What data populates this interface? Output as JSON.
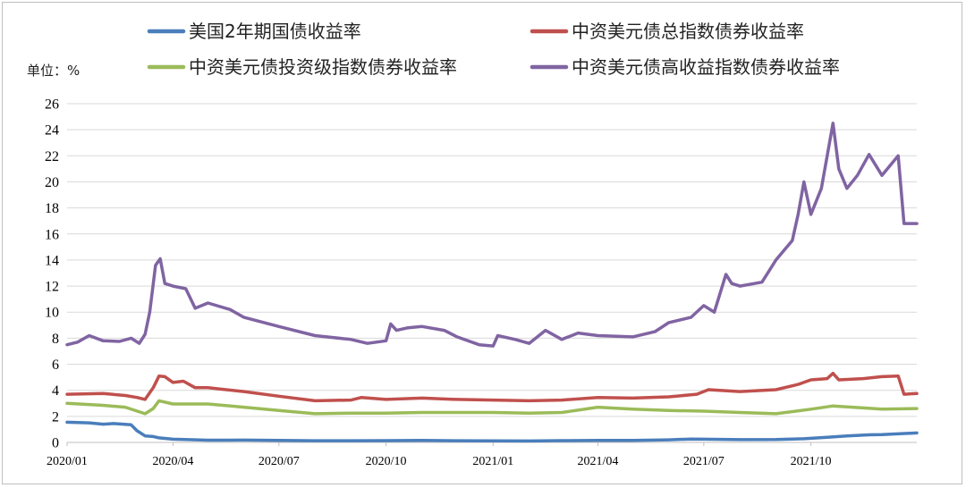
{
  "chart_data": {
    "type": "line",
    "unit_label": "单位：%",
    "ylim": [
      0,
      26
    ],
    "y_ticks": [
      "0",
      "2",
      "4",
      "6",
      "8",
      "10",
      "12",
      "14",
      "16",
      "18",
      "20",
      "22",
      "24",
      "26"
    ],
    "x_ticks": [
      "2020/01",
      "2020/04",
      "2020/07",
      "2020/10",
      "2021/01",
      "2021/04",
      "2021/07",
      "2021/10"
    ],
    "grid": "horizontal",
    "legend_position": "top",
    "series": [
      {
        "name": "美国2年期国债收益率",
        "color": "#4a7ebb",
        "points": [
          [
            "2020/01/01",
            1.55
          ],
          [
            "2020/01/20",
            1.5
          ],
          [
            "2020/02/01",
            1.4
          ],
          [
            "2020/02/10",
            1.45
          ],
          [
            "2020/02/25",
            1.35
          ],
          [
            "2020/03/01",
            0.9
          ],
          [
            "2020/03/08",
            0.5
          ],
          [
            "2020/03/15",
            0.45
          ],
          [
            "2020/03/20",
            0.35
          ],
          [
            "2020/04/01",
            0.25
          ],
          [
            "2020/05/01",
            0.17
          ],
          [
            "2020/06/01",
            0.18
          ],
          [
            "2020/07/01",
            0.15
          ],
          [
            "2020/08/01",
            0.13
          ],
          [
            "2020/09/01",
            0.13
          ],
          [
            "2020/10/01",
            0.14
          ],
          [
            "2020/11/01",
            0.16
          ],
          [
            "2020/12/01",
            0.13
          ],
          [
            "2021/01/01",
            0.12
          ],
          [
            "2021/02/01",
            0.11
          ],
          [
            "2021/03/01",
            0.14
          ],
          [
            "2021/04/01",
            0.16
          ],
          [
            "2021/05/01",
            0.15
          ],
          [
            "2021/06/01",
            0.2
          ],
          [
            "2021/06/20",
            0.26
          ],
          [
            "2021/07/01",
            0.25
          ],
          [
            "2021/08/01",
            0.21
          ],
          [
            "2021/09/01",
            0.22
          ],
          [
            "2021/09/25",
            0.28
          ],
          [
            "2021/10/15",
            0.4
          ],
          [
            "2021/11/01",
            0.5
          ],
          [
            "2021/11/20",
            0.58
          ],
          [
            "2021/12/01",
            0.6
          ],
          [
            "2021/12/31",
            0.73
          ]
        ]
      },
      {
        "name": "中资美元债总指数债券收益率",
        "color": "#c0504d",
        "points": [
          [
            "2020/01/01",
            3.7
          ],
          [
            "2020/02/01",
            3.75
          ],
          [
            "2020/02/20",
            3.6
          ],
          [
            "2020/03/01",
            3.45
          ],
          [
            "2020/03/08",
            3.3
          ],
          [
            "2020/03/15",
            4.2
          ],
          [
            "2020/03/20",
            5.1
          ],
          [
            "2020/03/25",
            5.05
          ],
          [
            "2020/04/01",
            4.6
          ],
          [
            "2020/04/10",
            4.7
          ],
          [
            "2020/04/20",
            4.2
          ],
          [
            "2020/05/01",
            4.2
          ],
          [
            "2020/06/01",
            3.9
          ],
          [
            "2020/07/01",
            3.55
          ],
          [
            "2020/08/01",
            3.2
          ],
          [
            "2020/09/01",
            3.25
          ],
          [
            "2020/09/10",
            3.45
          ],
          [
            "2020/10/01",
            3.3
          ],
          [
            "2020/11/01",
            3.4
          ],
          [
            "2020/12/01",
            3.3
          ],
          [
            "2021/01/01",
            3.25
          ],
          [
            "2021/02/01",
            3.2
          ],
          [
            "2021/03/01",
            3.25
          ],
          [
            "2021/04/01",
            3.45
          ],
          [
            "2021/05/01",
            3.4
          ],
          [
            "2021/06/01",
            3.5
          ],
          [
            "2021/06/25",
            3.7
          ],
          [
            "2021/07/05",
            4.05
          ],
          [
            "2021/08/01",
            3.9
          ],
          [
            "2021/09/01",
            4.05
          ],
          [
            "2021/09/20",
            4.45
          ],
          [
            "2021/10/01",
            4.8
          ],
          [
            "2021/10/15",
            4.9
          ],
          [
            "2021/10/20",
            5.3
          ],
          [
            "2021/10/25",
            4.8
          ],
          [
            "2021/11/15",
            4.9
          ],
          [
            "2021/12/01",
            5.05
          ],
          [
            "2021/12/15",
            5.1
          ],
          [
            "2021/12/20",
            3.7
          ],
          [
            "2021/12/31",
            3.75
          ]
        ]
      },
      {
        "name": "中资美元债投资级指数债券收益率",
        "color": "#9bbb59",
        "points": [
          [
            "2020/01/01",
            3.0
          ],
          [
            "2020/02/01",
            2.85
          ],
          [
            "2020/02/20",
            2.7
          ],
          [
            "2020/03/08",
            2.2
          ],
          [
            "2020/03/15",
            2.6
          ],
          [
            "2020/03/20",
            3.2
          ],
          [
            "2020/04/01",
            2.95
          ],
          [
            "2020/05/01",
            2.95
          ],
          [
            "2020/06/01",
            2.7
          ],
          [
            "2020/07/01",
            2.45
          ],
          [
            "2020/08/01",
            2.2
          ],
          [
            "2020/09/01",
            2.25
          ],
          [
            "2020/10/01",
            2.25
          ],
          [
            "2020/11/01",
            2.3
          ],
          [
            "2020/12/01",
            2.3
          ],
          [
            "2021/01/01",
            2.3
          ],
          [
            "2021/02/01",
            2.25
          ],
          [
            "2021/03/01",
            2.3
          ],
          [
            "2021/04/01",
            2.7
          ],
          [
            "2021/05/01",
            2.55
          ],
          [
            "2021/06/01",
            2.45
          ],
          [
            "2021/07/01",
            2.4
          ],
          [
            "2021/08/01",
            2.3
          ],
          [
            "2021/09/01",
            2.2
          ],
          [
            "2021/10/01",
            2.55
          ],
          [
            "2021/10/20",
            2.8
          ],
          [
            "2021/11/15",
            2.65
          ],
          [
            "2021/12/01",
            2.55
          ],
          [
            "2021/12/31",
            2.6
          ]
        ]
      },
      {
        "name": "中资美元债高收益指数债券收益率",
        "color": "#8064a2",
        "points": [
          [
            "2020/01/01",
            7.5
          ],
          [
            "2020/01/10",
            7.7
          ],
          [
            "2020/01/20",
            8.2
          ],
          [
            "2020/02/01",
            7.8
          ],
          [
            "2020/02/15",
            7.75
          ],
          [
            "2020/02/25",
            8.0
          ],
          [
            "2020/03/03",
            7.6
          ],
          [
            "2020/03/08",
            8.3
          ],
          [
            "2020/03/12",
            10.0
          ],
          [
            "2020/03/17",
            13.6
          ],
          [
            "2020/03/21",
            14.1
          ],
          [
            "2020/03/25",
            12.2
          ],
          [
            "2020/04/01",
            12.0
          ],
          [
            "2020/04/12",
            11.8
          ],
          [
            "2020/04/20",
            10.3
          ],
          [
            "2020/05/01",
            10.7
          ],
          [
            "2020/05/20",
            10.2
          ],
          [
            "2020/06/01",
            9.6
          ],
          [
            "2020/07/01",
            8.9
          ],
          [
            "2020/08/01",
            8.2
          ],
          [
            "2020/09/01",
            7.9
          ],
          [
            "2020/09/15",
            7.6
          ],
          [
            "2020/10/01",
            7.8
          ],
          [
            "2020/10/05",
            9.1
          ],
          [
            "2020/10/10",
            8.6
          ],
          [
            "2020/10/20",
            8.8
          ],
          [
            "2020/11/01",
            8.9
          ],
          [
            "2020/11/20",
            8.6
          ],
          [
            "2020/12/01",
            8.1
          ],
          [
            "2020/12/20",
            7.5
          ],
          [
            "2021/01/01",
            7.4
          ],
          [
            "2021/01/05",
            8.2
          ],
          [
            "2021/01/20",
            7.9
          ],
          [
            "2021/02/01",
            7.6
          ],
          [
            "2021/02/15",
            8.6
          ],
          [
            "2021/03/01",
            7.9
          ],
          [
            "2021/03/15",
            8.4
          ],
          [
            "2021/04/01",
            8.2
          ],
          [
            "2021/05/01",
            8.1
          ],
          [
            "2021/05/20",
            8.5
          ],
          [
            "2021/06/01",
            9.2
          ],
          [
            "2021/06/20",
            9.6
          ],
          [
            "2021/07/01",
            10.5
          ],
          [
            "2021/07/10",
            10.0
          ],
          [
            "2021/07/20",
            12.9
          ],
          [
            "2021/07/25",
            12.2
          ],
          [
            "2021/08/01",
            12.0
          ],
          [
            "2021/08/20",
            12.3
          ],
          [
            "2021/09/01",
            14.0
          ],
          [
            "2021/09/15",
            15.5
          ],
          [
            "2021/09/20",
            17.5
          ],
          [
            "2021/09/25",
            20.0
          ],
          [
            "2021/10/01",
            17.5
          ],
          [
            "2021/10/10",
            19.5
          ],
          [
            "2021/10/20",
            24.5
          ],
          [
            "2021/10/25",
            21.0
          ],
          [
            "2021/11/01",
            19.5
          ],
          [
            "2021/11/10",
            20.5
          ],
          [
            "2021/11/20",
            22.1
          ],
          [
            "2021/12/01",
            20.5
          ],
          [
            "2021/12/15",
            22.0
          ],
          [
            "2021/12/20",
            16.8
          ],
          [
            "2021/12/31",
            16.8
          ]
        ]
      }
    ]
  }
}
